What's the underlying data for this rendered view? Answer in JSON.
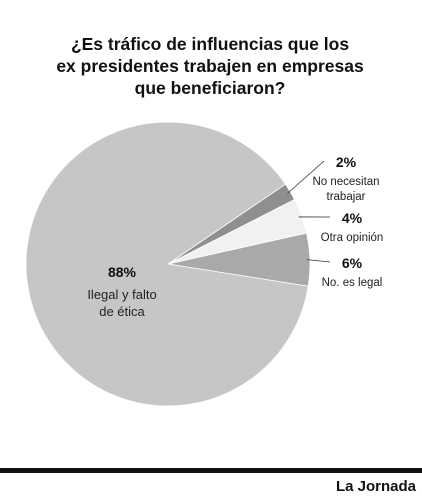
{
  "title_lines": [
    "¿Es tráfico de influencias que los",
    "ex presidentes trabajen en empresas",
    "que beneficiaron?"
  ],
  "source": "La Jornada",
  "chart_data": {
    "type": "pie",
    "title": "¿Es tráfico de influencias que los ex presidentes trabajen en empresas que beneficiaron?",
    "slices": [
      {
        "label": "Ilegal y falto de ética",
        "value": 88,
        "display": "88%",
        "color": "#c6c6c6"
      },
      {
        "label": "No. es legal",
        "value": 6,
        "display": "6%",
        "color": "#a9a9a9"
      },
      {
        "label": "Otra opinión",
        "value": 4,
        "display": "4%",
        "color": "#f1f1f1"
      },
      {
        "label": "No necesitan trabajar",
        "value": 2,
        "display": "2%",
        "color": "#8f8f8f"
      }
    ],
    "main_label_lines": [
      "Ilegal y falto",
      "de ética"
    ],
    "label_lines": {
      "No necesitan trabajar": [
        "No necesitan",
        "trabajar"
      ],
      "Otra opinión": [
        "Otra opinión"
      ],
      "No. es legal": [
        "No. es legal"
      ]
    }
  }
}
